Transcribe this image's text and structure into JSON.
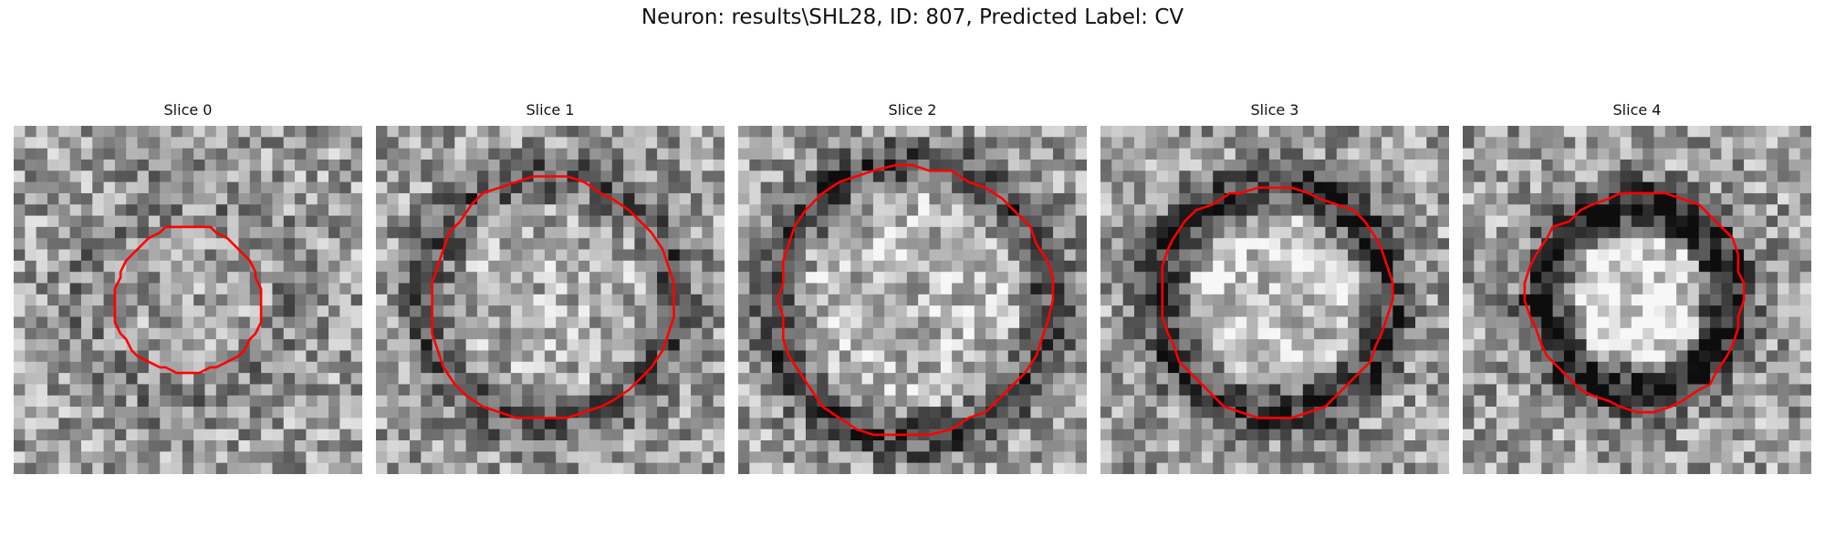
{
  "figure": {
    "title": "Neuron: results\\SHL28, ID: 807, Predicted Label: CV"
  },
  "colors": {
    "contour": "#ff0000"
  },
  "slices": [
    {
      "title": "Slice 0",
      "ring_r": 0.3,
      "ring_dark": 0.1,
      "center_bright": 0.02,
      "radius": 0.21,
      "offset": [
        0.0,
        0.0
      ]
    },
    {
      "title": "Slice 1",
      "ring_r": 0.36,
      "ring_dark": 0.28,
      "center_bright": 0.06,
      "radius": 0.35,
      "offset": [
        0.0,
        0.0
      ]
    },
    {
      "title": "Slice 2",
      "ring_r": 0.4,
      "ring_dark": 0.34,
      "center_bright": 0.1,
      "radius": 0.39,
      "offset": [
        0.0,
        0.0
      ]
    },
    {
      "title": "Slice 3",
      "ring_r": 0.33,
      "ring_dark": 0.42,
      "center_bright": 0.16,
      "radius": 0.33,
      "offset": [
        0.0,
        0.0
      ]
    },
    {
      "title": "Slice 4",
      "ring_r": 0.27,
      "ring_dark": 0.55,
      "center_bright": 0.24,
      "radius": 0.31,
      "offset": [
        0.0,
        0.0
      ]
    }
  ]
}
